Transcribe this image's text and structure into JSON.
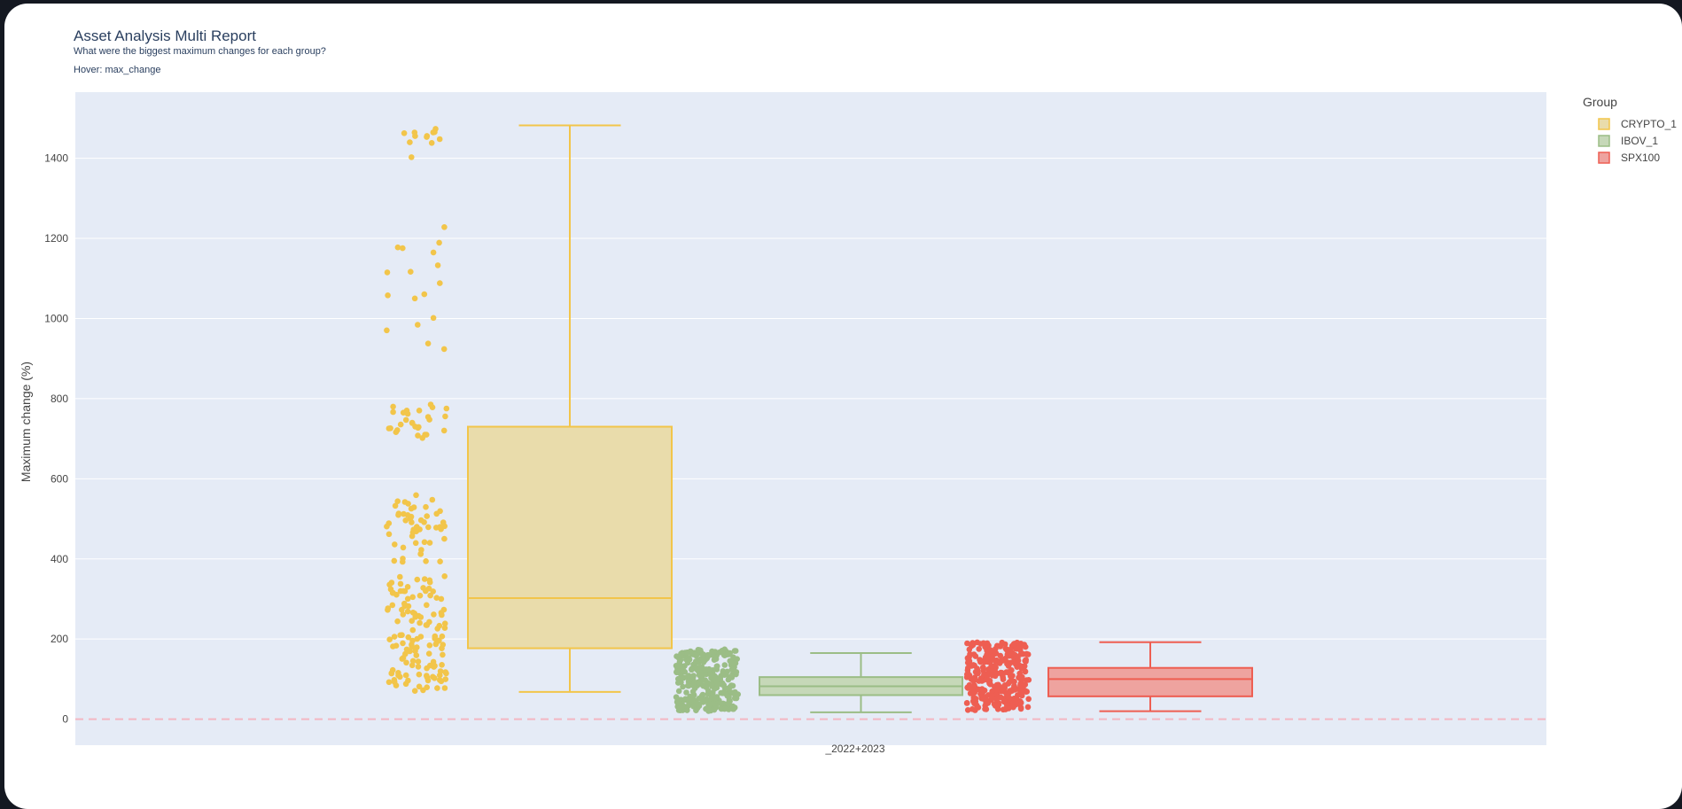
{
  "chart_data": {
    "type": "box",
    "title": "Asset Analysis Multi Report",
    "subtitle": "What were the biggest maximum changes for each group?",
    "hover_note": "Hover: max_change",
    "ylabel": "Maximum change (%)",
    "xlabel": "",
    "category": "_2022+2023",
    "ylim": [
      -65,
      1565
    ],
    "yticks": [
      0,
      200,
      400,
      600,
      800,
      1000,
      1200,
      1400
    ],
    "grid": true,
    "reference_line": {
      "y": 0,
      "style": "dashed",
      "color": "#f4b6c2"
    },
    "legend": {
      "title": "Group",
      "position": "top-right"
    },
    "series": [
      {
        "name": "CRYPTO_1",
        "color": "#f2c54a",
        "fill": "#e9dcab",
        "box": {
          "min": 68,
          "q1": 177,
          "median": 302,
          "q3": 730,
          "max": 1482
        },
        "points_range": [
          70,
          1482
        ]
      },
      {
        "name": "IBOV_1",
        "color": "#9bbd86",
        "fill": "#c6d8b8",
        "box": {
          "min": 17,
          "q1": 60,
          "median": 82,
          "q3": 105,
          "max": 165
        },
        "points_range": [
          20,
          175
        ]
      },
      {
        "name": "SPX100",
        "color": "#ee5e52",
        "fill": "#eea39f",
        "box": {
          "min": 20,
          "q1": 57,
          "median": 100,
          "q3": 128,
          "max": 192
        },
        "points_range": [
          22,
          192
        ]
      }
    ]
  }
}
